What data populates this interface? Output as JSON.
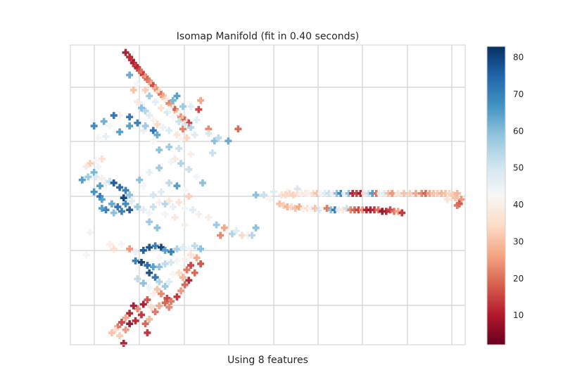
{
  "chart_data": {
    "type": "scatter",
    "title": "Isomap Manifold (fit in 0.40 seconds)",
    "xlabel": "Using 8 features",
    "ylabel": "",
    "xlim": [
      -1.0,
      1.0
    ],
    "ylim": [
      -1.0,
      1.0
    ],
    "grid": true,
    "marker": "plus",
    "colormap": "RdBu",
    "colorbar": {
      "range": [
        2,
        83
      ],
      "ticks": [
        10,
        20,
        30,
        40,
        50,
        60,
        70,
        80
      ],
      "tick_labels": [
        "10",
        "20",
        "30",
        "40",
        "50",
        "60",
        "70",
        "80"
      ]
    },
    "colormap_stops": [
      "#67001f",
      "#b2182b",
      "#d6604d",
      "#f4a582",
      "#fddbc7",
      "#f7f7f7",
      "#d1e5f0",
      "#92c5de",
      "#4393c3",
      "#2166ac",
      "#053061"
    ],
    "points": [
      [
        -0.72,
        0.95,
        8
      ],
      [
        -0.7,
        0.92,
        10
      ],
      [
        -0.69,
        0.9,
        12
      ],
      [
        -0.68,
        0.88,
        9
      ],
      [
        -0.67,
        0.86,
        14
      ],
      [
        -0.66,
        0.85,
        11
      ],
      [
        -0.65,
        0.83,
        16
      ],
      [
        -0.64,
        0.82,
        20
      ],
      [
        -0.63,
        0.8,
        13
      ],
      [
        -0.62,
        0.79,
        25
      ],
      [
        -0.61,
        0.77,
        18
      ],
      [
        -0.6,
        0.76,
        22
      ],
      [
        -0.59,
        0.74,
        28
      ],
      [
        -0.58,
        0.73,
        15
      ],
      [
        -0.57,
        0.71,
        30
      ],
      [
        -0.56,
        0.7,
        24
      ],
      [
        -0.55,
        0.69,
        35
      ],
      [
        -0.54,
        0.67,
        19
      ],
      [
        -0.53,
        0.66,
        27
      ],
      [
        -0.52,
        0.64,
        33
      ],
      [
        -0.51,
        0.63,
        40
      ],
      [
        -0.5,
        0.61,
        21
      ],
      [
        -0.49,
        0.6,
        26
      ],
      [
        -0.48,
        0.58,
        38
      ],
      [
        -0.47,
        0.57,
        17
      ],
      [
        -0.46,
        0.55,
        29
      ],
      [
        -0.45,
        0.54,
        42
      ],
      [
        -0.44,
        0.52,
        23
      ],
      [
        -0.43,
        0.51,
        31
      ],
      [
        -0.42,
        0.5,
        18
      ],
      [
        -0.41,
        0.49,
        36
      ],
      [
        -0.4,
        0.48,
        14
      ],
      [
        -0.7,
        0.8,
        64
      ],
      [
        -0.66,
        0.74,
        44
      ],
      [
        -0.62,
        0.7,
        32
      ],
      [
        -0.6,
        0.66,
        58
      ],
      [
        -0.57,
        0.62,
        47
      ],
      [
        -0.54,
        0.58,
        36
      ],
      [
        -0.51,
        0.55,
        50
      ],
      [
        -0.48,
        0.52,
        43
      ],
      [
        -0.45,
        0.49,
        52
      ],
      [
        -0.68,
        0.7,
        30
      ],
      [
        -0.66,
        0.62,
        38
      ],
      [
        -0.64,
        0.6,
        46
      ],
      [
        -0.62,
        0.56,
        55
      ],
      [
        -0.6,
        0.53,
        48
      ],
      [
        -0.58,
        0.5,
        41
      ],
      [
        -0.56,
        0.47,
        34
      ],
      [
        -0.53,
        0.45,
        45
      ],
      [
        -0.5,
        0.43,
        49
      ],
      [
        -0.46,
        0.4,
        37
      ],
      [
        -0.44,
        0.37,
        42
      ],
      [
        -0.5,
        0.57,
        44
      ],
      [
        -0.48,
        0.63,
        62
      ],
      [
        -0.46,
        0.66,
        66
      ],
      [
        -0.43,
        0.59,
        58
      ],
      [
        -0.39,
        0.59,
        48
      ],
      [
        -0.35,
        0.57,
        14
      ],
      [
        -0.34,
        0.63,
        26
      ],
      [
        -0.36,
        0.5,
        48
      ],
      [
        -0.43,
        0.44,
        21
      ],
      [
        -0.41,
        0.38,
        33
      ],
      [
        -0.45,
        0.31,
        52
      ],
      [
        -0.47,
        0.24,
        38
      ],
      [
        -0.5,
        0.32,
        58
      ],
      [
        -0.55,
        0.3,
        60
      ],
      [
        -0.58,
        0.36,
        42
      ],
      [
        -0.63,
        0.43,
        46
      ],
      [
        -0.7,
        0.46,
        66
      ],
      [
        -0.75,
        0.53,
        40
      ],
      [
        -0.78,
        0.53,
        74
      ],
      [
        -0.83,
        0.49,
        63
      ],
      [
        -0.8,
        0.46,
        42
      ],
      [
        -0.75,
        0.42,
        66
      ],
      [
        -0.82,
        0.39,
        46
      ],
      [
        -0.86,
        0.38,
        42
      ],
      [
        -0.88,
        0.46,
        70
      ],
      [
        -0.7,
        0.52,
        74
      ],
      [
        -0.66,
        0.48,
        72
      ],
      [
        -0.64,
        0.58,
        60
      ],
      [
        -0.62,
        0.46,
        58
      ],
      [
        -0.58,
        0.43,
        74
      ],
      [
        -0.56,
        0.4,
        64
      ],
      [
        -0.42,
        0.47,
        50
      ],
      [
        -0.39,
        0.45,
        55
      ],
      [
        -0.37,
        0.4,
        48
      ],
      [
        -0.39,
        0.27,
        40
      ],
      [
        -0.3,
        0.44,
        22
      ],
      [
        -0.3,
        0.41,
        50
      ],
      [
        -0.27,
        0.36,
        60
      ],
      [
        -0.25,
        0.38,
        54
      ],
      [
        -0.2,
        0.36,
        64
      ],
      [
        -0.15,
        0.44,
        18
      ],
      [
        -0.28,
        0.28,
        52
      ],
      [
        -0.84,
        0.24,
        35
      ],
      [
        -0.87,
        0.23,
        42
      ],
      [
        -0.9,
        0.21,
        32
      ],
      [
        -0.92,
        0.19,
        38
      ],
      [
        -0.86,
        0.19,
        44
      ],
      [
        -0.88,
        0.15,
        62
      ],
      [
        -0.91,
        0.12,
        58
      ],
      [
        -0.94,
        0.1,
        66
      ],
      [
        -0.87,
        0.12,
        48
      ],
      [
        -0.84,
        0.11,
        40
      ],
      [
        -0.82,
        0.08,
        46
      ],
      [
        -0.8,
        0.09,
        52
      ],
      [
        -0.85,
        0.06,
        66
      ],
      [
        -0.88,
        0.02,
        68
      ],
      [
        -0.85,
        -0.01,
        74
      ],
      [
        -0.84,
        -0.03,
        66
      ],
      [
        -0.78,
        0.08,
        78
      ],
      [
        -0.75,
        0.05,
        76
      ],
      [
        -0.72,
        0.03,
        72
      ],
      [
        -0.73,
        -0.02,
        82
      ],
      [
        -0.7,
        0.0,
        60
      ],
      [
        -0.69,
        -0.04,
        48
      ],
      [
        -0.72,
        -0.06,
        70
      ],
      [
        -0.76,
        -0.08,
        74
      ],
      [
        -0.79,
        -0.06,
        64
      ],
      [
        -0.82,
        -0.1,
        72
      ],
      [
        -0.84,
        -0.09,
        66
      ],
      [
        -0.78,
        -0.12,
        60
      ],
      [
        -0.74,
        -0.11,
        72
      ],
      [
        -0.7,
        -0.1,
        78
      ],
      [
        -0.66,
        -0.08,
        58
      ],
      [
        -0.63,
        -0.1,
        48
      ],
      [
        -0.6,
        -0.12,
        44
      ],
      [
        -0.58,
        -0.08,
        52
      ],
      [
        -0.55,
        -0.05,
        40
      ],
      [
        -0.52,
        -0.06,
        55
      ],
      [
        -0.5,
        -0.04,
        38
      ],
      [
        -0.48,
        -0.08,
        46
      ],
      [
        -0.45,
        -0.05,
        36
      ],
      [
        -0.42,
        -0.09,
        44
      ],
      [
        -0.38,
        -0.1,
        48
      ],
      [
        -0.35,
        -0.13,
        40
      ],
      [
        -0.52,
        -0.13,
        44
      ],
      [
        -0.47,
        -0.15,
        38
      ],
      [
        -0.6,
        -0.18,
        58
      ],
      [
        -0.56,
        -0.22,
        60
      ],
      [
        -0.65,
        0.1,
        60
      ],
      [
        -0.63,
        0.06,
        44
      ],
      [
        -0.58,
        0.0,
        50
      ],
      [
        -0.54,
        0.02,
        48
      ],
      [
        -0.5,
        0.08,
        54
      ],
      [
        -0.46,
        0.06,
        66
      ],
      [
        -0.42,
        0.03,
        42
      ],
      [
        -0.4,
        -0.01,
        32
      ],
      [
        -0.6,
        0.15,
        46
      ],
      [
        -0.55,
        0.18,
        58
      ],
      [
        -0.49,
        0.22,
        44
      ],
      [
        -0.44,
        0.21,
        56
      ],
      [
        -0.4,
        0.17,
        52
      ],
      [
        -0.36,
        0.12,
        44
      ],
      [
        -0.33,
        0.08,
        60
      ],
      [
        -0.3,
        -0.15,
        40
      ],
      [
        -0.26,
        -0.2,
        58
      ],
      [
        -0.22,
        -0.22,
        26
      ],
      [
        -0.24,
        -0.27,
        22
      ],
      [
        -0.2,
        -0.25,
        42
      ],
      [
        -0.18,
        -0.26,
        56
      ],
      [
        -0.16,
        -0.24,
        48
      ],
      [
        -0.13,
        -0.27,
        34
      ],
      [
        -0.1,
        -0.27,
        40
      ],
      [
        -0.08,
        -0.27,
        55
      ],
      [
        -0.06,
        0.0,
        60
      ],
      [
        -0.02,
        0.0,
        52
      ],
      [
        0.03,
        0.02,
        48
      ],
      [
        0.1,
        0.02,
        40
      ],
      [
        0.15,
        0.04,
        50
      ],
      [
        -0.9,
        -0.25,
        44
      ],
      [
        -0.92,
        -0.4,
        42
      ],
      [
        -0.8,
        -0.33,
        40
      ],
      [
        -0.78,
        -0.36,
        36
      ],
      [
        -0.74,
        -0.33,
        42
      ],
      [
        -0.7,
        -0.36,
        24
      ],
      [
        -0.67,
        -0.38,
        46
      ],
      [
        -0.63,
        -0.37,
        78
      ],
      [
        -0.6,
        -0.35,
        80
      ],
      [
        -0.57,
        -0.34,
        72
      ],
      [
        -0.54,
        -0.35,
        82
      ],
      [
        -0.52,
        -0.37,
        66
      ],
      [
        -0.49,
        -0.38,
        72
      ],
      [
        -0.46,
        -0.36,
        56
      ],
      [
        -0.43,
        -0.35,
        48
      ],
      [
        -0.4,
        -0.36,
        44
      ],
      [
        -0.37,
        -0.34,
        54
      ],
      [
        -0.34,
        -0.36,
        60
      ],
      [
        -0.67,
        -0.44,
        72
      ],
      [
        -0.64,
        -0.45,
        82
      ],
      [
        -0.61,
        -0.47,
        76
      ],
      [
        -0.58,
        -0.48,
        66
      ],
      [
        -0.55,
        -0.48,
        60
      ],
      [
        -0.52,
        -0.46,
        54
      ],
      [
        -0.49,
        -0.45,
        50
      ],
      [
        -0.46,
        -0.44,
        44
      ],
      [
        -0.42,
        -0.43,
        40
      ],
      [
        -0.39,
        -0.4,
        36
      ],
      [
        -0.36,
        -0.42,
        26
      ],
      [
        -0.34,
        -0.46,
        16
      ],
      [
        -0.6,
        -0.52,
        80
      ],
      [
        -0.57,
        -0.55,
        74
      ],
      [
        -0.55,
        -0.58,
        56
      ],
      [
        -0.52,
        -0.61,
        58
      ],
      [
        -0.5,
        -0.58,
        48
      ],
      [
        -0.48,
        -0.53,
        42
      ],
      [
        -0.45,
        -0.52,
        34
      ],
      [
        -0.43,
        -0.55,
        28
      ],
      [
        -0.41,
        -0.5,
        20
      ],
      [
        -0.39,
        -0.47,
        14
      ],
      [
        -0.37,
        -0.52,
        18
      ],
      [
        -0.66,
        -0.56,
        54
      ],
      [
        -0.63,
        -0.59,
        60
      ],
      [
        -0.6,
        -0.62,
        44
      ],
      [
        -0.58,
        -0.66,
        40
      ],
      [
        -0.56,
        -0.63,
        30
      ],
      [
        -0.54,
        -0.66,
        22
      ],
      [
        -0.51,
        -0.69,
        14
      ],
      [
        -0.49,
        -0.71,
        20
      ],
      [
        -0.46,
        -0.68,
        12
      ],
      [
        -0.44,
        -0.64,
        24
      ],
      [
        -0.42,
        -0.6,
        18
      ],
      [
        -0.4,
        -0.57,
        10
      ],
      [
        -0.61,
        -0.7,
        16
      ],
      [
        -0.63,
        -0.73,
        8
      ],
      [
        -0.59,
        -0.75,
        34
      ],
      [
        -0.57,
        -0.78,
        20
      ],
      [
        -0.6,
        -0.83,
        28
      ],
      [
        -0.64,
        -0.8,
        12
      ],
      [
        -0.66,
        -0.76,
        22
      ],
      [
        -0.68,
        -0.74,
        8
      ],
      [
        -0.7,
        -0.79,
        10
      ],
      [
        -0.72,
        -0.82,
        26
      ],
      [
        -0.74,
        -0.85,
        14
      ],
      [
        -0.76,
        -0.88,
        20
      ],
      [
        -0.77,
        -0.9,
        36
      ],
      [
        -0.79,
        -0.92,
        30
      ],
      [
        -0.75,
        -0.94,
        32
      ],
      [
        -0.72,
        -0.9,
        24
      ],
      [
        -0.7,
        -0.86,
        6
      ],
      [
        -0.67,
        -0.84,
        10
      ],
      [
        -0.62,
        -0.86,
        18
      ],
      [
        -0.73,
        -0.99,
        8
      ],
      [
        -0.55,
        -0.74,
        26
      ],
      [
        -0.52,
        -0.72,
        18
      ],
      [
        -0.5,
        -0.75,
        22
      ],
      [
        -0.61,
        -0.92,
        12
      ],
      [
        0.07,
        0.0,
        36
      ],
      [
        0.09,
        0.0,
        34
      ],
      [
        0.11,
        0.01,
        34
      ],
      [
        0.13,
        0.0,
        33
      ],
      [
        0.15,
        0.01,
        36
      ],
      [
        0.17,
        0.01,
        40
      ],
      [
        0.19,
        0.01,
        38
      ],
      [
        0.21,
        0.01,
        42
      ],
      [
        0.23,
        0.01,
        34
      ],
      [
        0.25,
        0.01,
        30
      ],
      [
        0.27,
        0.01,
        44
      ],
      [
        0.29,
        0.01,
        48
      ],
      [
        0.31,
        0.01,
        52
      ],
      [
        0.33,
        0.01,
        40
      ],
      [
        0.35,
        0.01,
        60
      ],
      [
        0.37,
        0.01,
        70
      ],
      [
        0.39,
        0.01,
        44
      ],
      [
        0.41,
        0.01,
        60
      ],
      [
        0.43,
        0.01,
        10
      ],
      [
        0.45,
        0.01,
        14
      ],
      [
        0.47,
        0.01,
        8
      ],
      [
        0.49,
        0.01,
        38
      ],
      [
        0.51,
        0.01,
        52
      ],
      [
        0.53,
        0.01,
        66
      ],
      [
        0.55,
        0.01,
        20
      ],
      [
        0.57,
        0.01,
        44
      ],
      [
        0.59,
        0.01,
        48
      ],
      [
        0.61,
        0.01,
        30
      ],
      [
        0.63,
        0.01,
        24
      ],
      [
        0.66,
        0.01,
        36
      ],
      [
        0.69,
        0.01,
        30
      ],
      [
        0.72,
        0.01,
        32
      ],
      [
        0.75,
        0.01,
        26
      ],
      [
        0.78,
        0.01,
        22
      ],
      [
        0.8,
        0.01,
        18
      ],
      [
        0.82,
        0.01,
        26
      ],
      [
        0.84,
        0.01,
        30
      ],
      [
        0.86,
        0.01,
        32
      ],
      [
        0.88,
        0.01,
        28
      ],
      [
        0.9,
        0.01,
        30
      ],
      [
        0.92,
        0.01,
        34
      ],
      [
        0.94,
        0.0,
        32
      ],
      [
        0.96,
        0.01,
        28
      ],
      [
        0.98,
        -0.03,
        24
      ],
      [
        0.97,
        -0.06,
        16
      ],
      [
        0.96,
        -0.07,
        20
      ],
      [
        0.95,
        -0.02,
        30
      ],
      [
        0.91,
        -0.03,
        36
      ],
      [
        0.06,
        -0.06,
        30
      ],
      [
        0.08,
        -0.07,
        32
      ],
      [
        0.1,
        -0.08,
        28
      ],
      [
        0.12,
        -0.08,
        34
      ],
      [
        0.14,
        -0.09,
        30
      ],
      [
        0.16,
        -0.08,
        26
      ],
      [
        0.18,
        -0.09,
        40
      ],
      [
        0.2,
        -0.09,
        36
      ],
      [
        0.22,
        -0.09,
        44
      ],
      [
        0.24,
        -0.09,
        30
      ],
      [
        0.26,
        -0.1,
        50
      ],
      [
        0.28,
        -0.09,
        42
      ],
      [
        0.3,
        -0.09,
        20
      ],
      [
        0.32,
        -0.1,
        60
      ],
      [
        0.34,
        -0.1,
        72
      ],
      [
        0.36,
        -0.1,
        46
      ],
      [
        0.38,
        -0.1,
        38
      ],
      [
        0.4,
        -0.09,
        52
      ],
      [
        0.42,
        -0.1,
        22
      ],
      [
        0.44,
        -0.1,
        18
      ],
      [
        0.46,
        -0.1,
        14
      ],
      [
        0.48,
        -0.1,
        24
      ],
      [
        0.5,
        -0.1,
        10
      ],
      [
        0.52,
        -0.1,
        8
      ],
      [
        0.54,
        -0.1,
        12
      ],
      [
        0.56,
        -0.1,
        20
      ],
      [
        0.58,
        -0.11,
        6
      ],
      [
        0.6,
        -0.11,
        10
      ],
      [
        0.62,
        -0.1,
        14
      ],
      [
        0.64,
        -0.11,
        20
      ],
      [
        0.66,
        -0.11,
        26
      ],
      [
        0.68,
        -0.12,
        12
      ],
      [
        0.01,
        -0.03,
        42
      ],
      [
        -0.06,
        -0.22,
        60
      ],
      [
        0.2,
        0.01,
        40
      ],
      [
        -0.55,
        -0.42,
        42
      ],
      [
        -0.42,
        -0.2,
        40
      ]
    ]
  }
}
